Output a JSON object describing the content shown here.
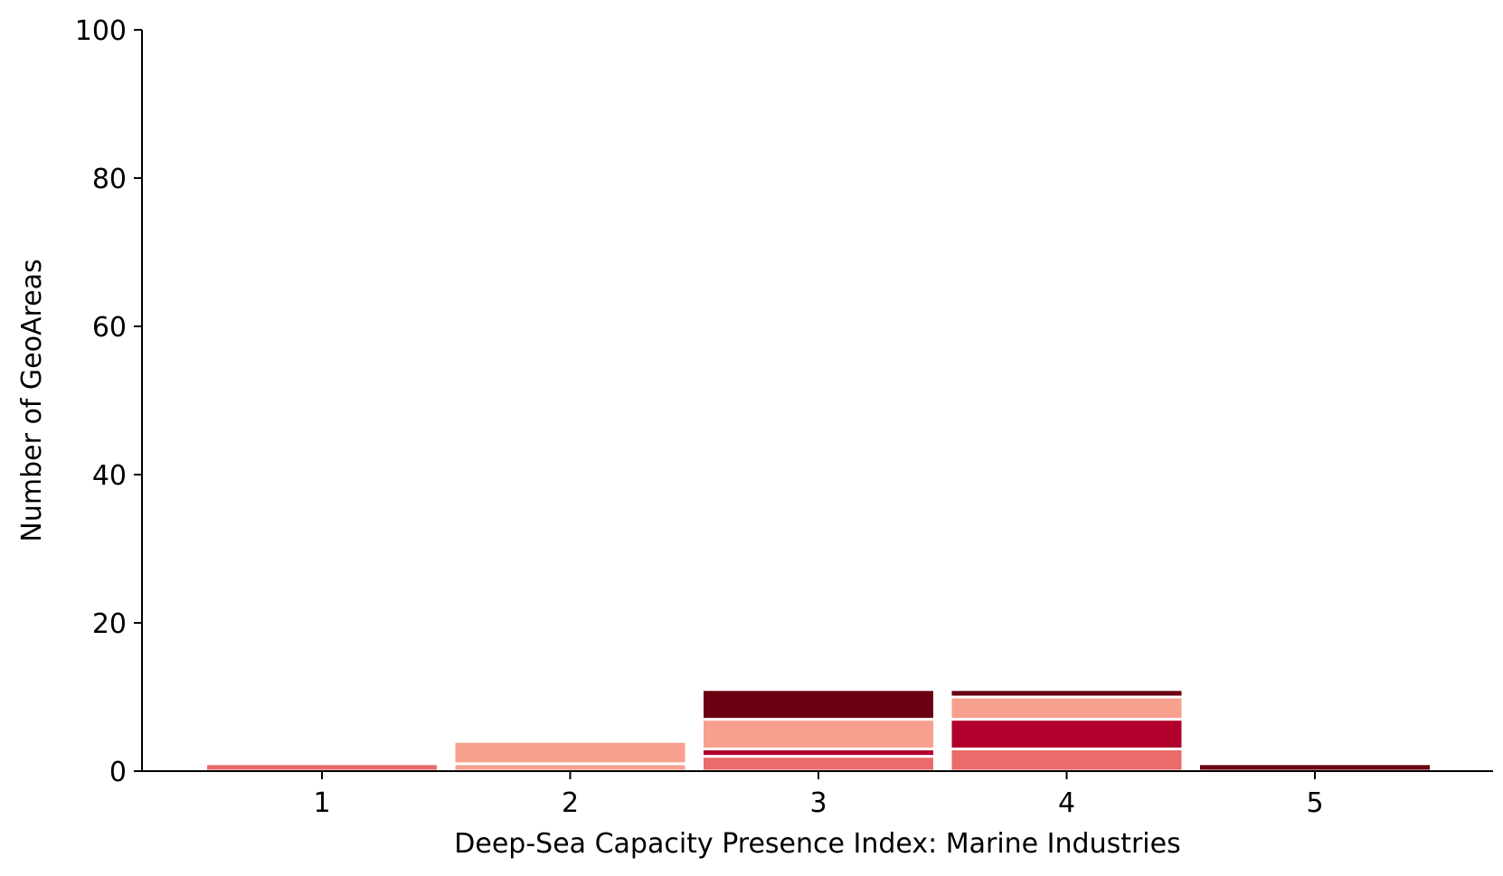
{
  "chart_data": {
    "type": "bar",
    "stacked": true,
    "xlabel": "Deep-Sea Capacity Presence Index: Marine Industries",
    "ylabel": "Number of GeoAreas",
    "ylim": [
      0,
      100
    ],
    "yticks": [
      0,
      20,
      40,
      60,
      80,
      100
    ],
    "categories": [
      "1",
      "2",
      "3",
      "4",
      "5"
    ],
    "grid": false,
    "stacks": [
      [
        {
          "value": 1,
          "color": "#eb6a6a"
        }
      ],
      [
        {
          "value": 1,
          "color": "#f7a08d"
        },
        {
          "value": 3,
          "color": "#f7a08d"
        }
      ],
      [
        {
          "value": 2,
          "color": "#eb6a6a"
        },
        {
          "value": 1,
          "color": "#b1002c"
        },
        {
          "value": 4,
          "color": "#f7a08d"
        },
        {
          "value": 4,
          "color": "#6a0012"
        }
      ],
      [
        {
          "value": 3,
          "color": "#eb6a6a"
        },
        {
          "value": 4,
          "color": "#b1002c"
        },
        {
          "value": 3,
          "color": "#f7a08d"
        },
        {
          "value": 1,
          "color": "#6a0012"
        }
      ],
      [
        {
          "value": 1,
          "color": "#6a0012"
        }
      ]
    ]
  }
}
